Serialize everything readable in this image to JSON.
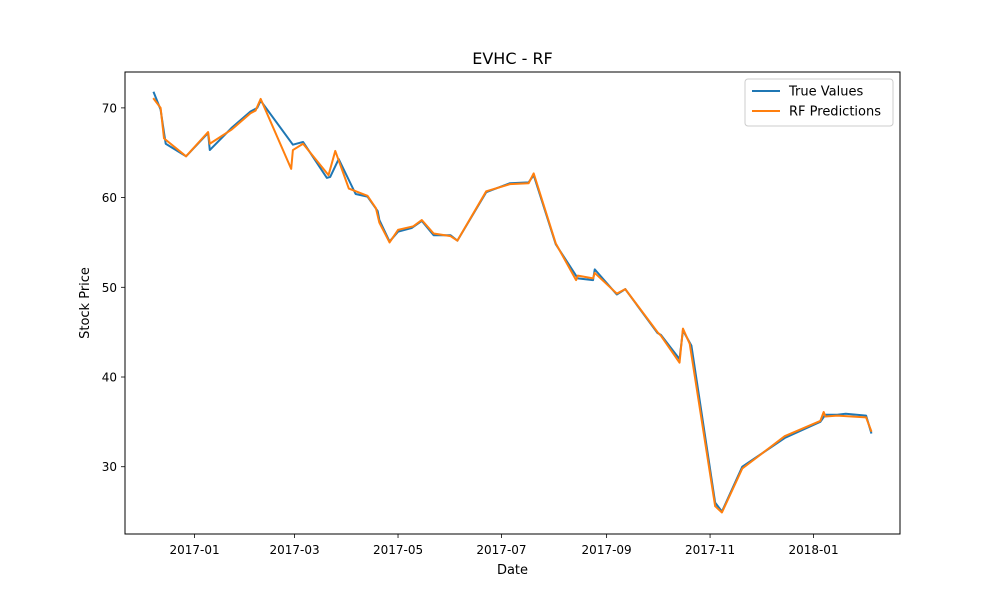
{
  "chart_data": {
    "type": "line",
    "title": "EVHC - RF",
    "xlabel": "Date",
    "ylabel": "Stock Price",
    "x_ticks": [
      "2017-01",
      "2017-03",
      "2017-05",
      "2017-07",
      "2017-09",
      "2017-11",
      "2018-01"
    ],
    "y_ticks": [
      30,
      40,
      50,
      60,
      70
    ],
    "xlim": [
      "2016-11-21",
      "2018-02-21"
    ],
    "ylim": [
      22.5,
      74.0
    ],
    "grid": false,
    "legend_position": "top-right",
    "series": [
      {
        "name": "True Values",
        "color": "#1f77b4",
        "points": [
          [
            "2016-12-08",
            71.7
          ],
          [
            "2016-12-12",
            69.8
          ],
          [
            "2016-12-15",
            66.0
          ],
          [
            "2016-12-27",
            64.6
          ],
          [
            "2017-01-09",
            67.2
          ],
          [
            "2017-01-10",
            65.3
          ],
          [
            "2017-01-23",
            67.8
          ],
          [
            "2017-02-03",
            69.6
          ],
          [
            "2017-02-07",
            70.0
          ],
          [
            "2017-02-09",
            70.8
          ],
          [
            "2017-02-28",
            65.9
          ],
          [
            "2017-03-06",
            66.2
          ],
          [
            "2017-03-20",
            62.2
          ],
          [
            "2017-03-22",
            62.3
          ],
          [
            "2017-03-27",
            64.3
          ],
          [
            "2017-04-06",
            60.4
          ],
          [
            "2017-04-13",
            60.1
          ],
          [
            "2017-04-19",
            58.5
          ],
          [
            "2017-04-20",
            57.5
          ],
          [
            "2017-04-26",
            55.1
          ],
          [
            "2017-05-01",
            56.2
          ],
          [
            "2017-05-09",
            56.6
          ],
          [
            "2017-05-15",
            57.4
          ],
          [
            "2017-05-22",
            55.8
          ],
          [
            "2017-06-01",
            55.8
          ],
          [
            "2017-06-05",
            55.2
          ],
          [
            "2017-06-22",
            60.6
          ],
          [
            "2017-07-06",
            61.6
          ],
          [
            "2017-07-17",
            61.7
          ],
          [
            "2017-07-20",
            62.5
          ],
          [
            "2017-08-02",
            54.8
          ],
          [
            "2017-08-15",
            51.0
          ],
          [
            "2017-08-24",
            50.8
          ],
          [
            "2017-08-25",
            52.0
          ],
          [
            "2017-09-07",
            49.2
          ],
          [
            "2017-09-12",
            49.8
          ],
          [
            "2017-10-01",
            44.9
          ],
          [
            "2017-10-03",
            44.7
          ],
          [
            "2017-10-14",
            42.0
          ],
          [
            "2017-10-16",
            45.2
          ],
          [
            "2017-10-21",
            43.5
          ],
          [
            "2017-11-04",
            26.0
          ],
          [
            "2017-11-08",
            25.0
          ],
          [
            "2017-11-20",
            30.0
          ],
          [
            "2017-12-15",
            33.2
          ],
          [
            "2018-01-05",
            35.0
          ],
          [
            "2018-01-08",
            35.8
          ],
          [
            "2018-01-15",
            35.8
          ],
          [
            "2018-01-20",
            35.9
          ],
          [
            "2018-02-01",
            35.7
          ],
          [
            "2018-02-04",
            33.8
          ]
        ]
      },
      {
        "name": "RF Predictions",
        "color": "#ff7f0e",
        "points": [
          [
            "2016-12-08",
            71.0
          ],
          [
            "2016-12-12",
            70.0
          ],
          [
            "2016-12-14",
            66.6
          ],
          [
            "2016-12-27",
            64.6
          ],
          [
            "2017-01-09",
            67.3
          ],
          [
            "2017-01-10",
            66.0
          ],
          [
            "2017-01-23",
            67.6
          ],
          [
            "2017-02-03",
            69.4
          ],
          [
            "2017-02-06",
            69.7
          ],
          [
            "2017-02-09",
            71.0
          ],
          [
            "2017-02-27",
            63.2
          ],
          [
            "2017-02-28",
            65.3
          ],
          [
            "2017-03-06",
            66.0
          ],
          [
            "2017-03-21",
            62.5
          ],
          [
            "2017-03-25",
            65.2
          ],
          [
            "2017-04-02",
            61.0
          ],
          [
            "2017-04-13",
            60.2
          ],
          [
            "2017-04-18",
            58.8
          ],
          [
            "2017-04-20",
            57.2
          ],
          [
            "2017-04-26",
            55.0
          ],
          [
            "2017-05-01",
            56.4
          ],
          [
            "2017-05-10",
            56.8
          ],
          [
            "2017-05-15",
            57.5
          ],
          [
            "2017-05-22",
            56.0
          ],
          [
            "2017-06-01",
            55.7
          ],
          [
            "2017-06-05",
            55.2
          ],
          [
            "2017-06-22",
            60.7
          ],
          [
            "2017-07-06",
            61.5
          ],
          [
            "2017-07-17",
            61.6
          ],
          [
            "2017-07-20",
            62.7
          ],
          [
            "2017-08-02",
            54.9
          ],
          [
            "2017-08-14",
            50.8
          ],
          [
            "2017-08-15",
            51.3
          ],
          [
            "2017-08-24",
            51.0
          ],
          [
            "2017-08-25",
            51.6
          ],
          [
            "2017-09-07",
            49.3
          ],
          [
            "2017-09-12",
            49.8
          ],
          [
            "2017-10-01",
            45.0
          ],
          [
            "2017-10-03",
            44.6
          ],
          [
            "2017-10-14",
            41.6
          ],
          [
            "2017-10-16",
            45.4
          ],
          [
            "2017-10-20",
            43.7
          ],
          [
            "2017-11-04",
            25.6
          ],
          [
            "2017-11-08",
            24.9
          ],
          [
            "2017-11-20",
            29.8
          ],
          [
            "2017-12-15",
            33.4
          ],
          [
            "2018-01-05",
            35.1
          ],
          [
            "2018-01-07",
            36.1
          ],
          [
            "2018-01-08",
            35.6
          ],
          [
            "2018-01-15",
            35.7
          ],
          [
            "2018-02-01",
            35.5
          ],
          [
            "2018-02-04",
            34.0
          ]
        ]
      }
    ]
  }
}
